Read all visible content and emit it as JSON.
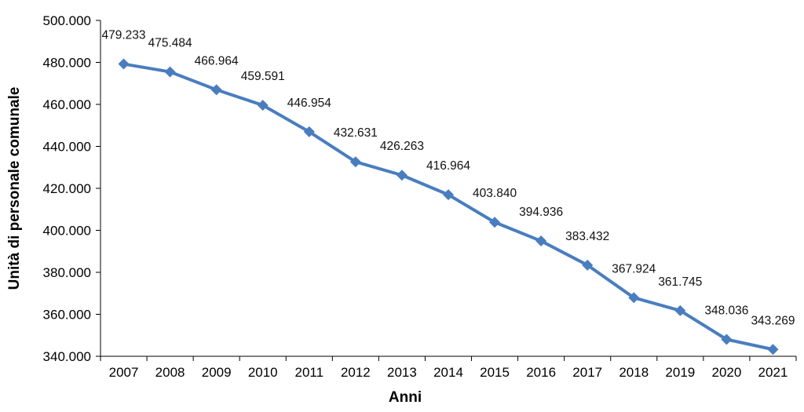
{
  "chart_data": {
    "type": "line",
    "title": "",
    "xlabel": "Anni",
    "ylabel": "Unità di personale comunale",
    "ylim": [
      340000,
      500000
    ],
    "y_ticks": [
      340000,
      360000,
      380000,
      400000,
      420000,
      440000,
      460000,
      480000,
      500000
    ],
    "y_tick_labels": [
      "340.000",
      "360.000",
      "380.000",
      "400.000",
      "420.000",
      "440.000",
      "460.000",
      "480.000",
      "500.000"
    ],
    "grid": false,
    "legend": "none",
    "categories": [
      "2007",
      "2008",
      "2009",
      "2010",
      "2011",
      "2012",
      "2013",
      "2014",
      "2015",
      "2016",
      "2017",
      "2018",
      "2019",
      "2020",
      "2021"
    ],
    "series": [
      {
        "color": "#4a7dbf",
        "marker": "diamond",
        "values": [
          479233,
          475484,
          466964,
          459591,
          446954,
          432631,
          426263,
          416964,
          403840,
          394936,
          383432,
          367924,
          361745,
          348036,
          343269
        ],
        "labels": [
          "479.233",
          "475.484",
          "466.964",
          "459.591",
          "446.954",
          "432.631",
          "426.263",
          "416.964",
          "403.840",
          "394.936",
          "383.432",
          "367.924",
          "361.745",
          "348.036",
          "343.269"
        ]
      }
    ]
  }
}
